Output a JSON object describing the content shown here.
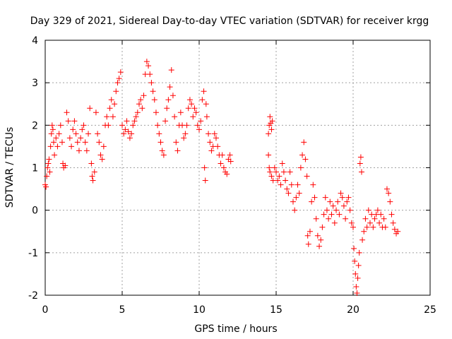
{
  "chart_data": {
    "type": "scatter",
    "title": "Day 329 of 2021, Sidereal Day-to-day VTEC variation (SDTVAR) for receiver krgg",
    "xlabel": "GPS time / hours",
    "ylabel": "SDTVAR / TECUs",
    "xlim": [
      0,
      25
    ],
    "ylim": [
      -2,
      4
    ],
    "xticks": [
      0,
      5,
      10,
      15,
      20,
      25
    ],
    "yticks": [
      -2,
      -1,
      0,
      1,
      2,
      3,
      4
    ],
    "xtick_labels": [
      "0",
      "5",
      "10",
      "15",
      "20",
      "25"
    ],
    "ytick_labels": [
      "-2",
      "-1",
      "0",
      "1",
      "2",
      "3",
      "4"
    ],
    "grid": true,
    "marker": "+",
    "marker_color": "#ff0000",
    "series": [
      {
        "name": "SDTVAR",
        "points": [
          [
            0.0,
            0.6
          ],
          [
            0.05,
            0.55
          ],
          [
            0.1,
            0.8
          ],
          [
            0.15,
            1.0
          ],
          [
            0.2,
            1.1
          ],
          [
            0.25,
            1.2
          ],
          [
            0.3,
            0.9
          ],
          [
            0.35,
            1.5
          ],
          [
            0.4,
            1.8
          ],
          [
            0.45,
            2.0
          ],
          [
            0.5,
            1.9
          ],
          [
            0.55,
            1.6
          ],
          [
            0.6,
            1.3
          ],
          [
            0.7,
            1.7
          ],
          [
            0.8,
            1.5
          ],
          [
            0.9,
            1.8
          ],
          [
            1.0,
            2.0
          ],
          [
            1.1,
            1.6
          ],
          [
            1.15,
            1.1
          ],
          [
            1.2,
            1.0
          ],
          [
            1.3,
            1.05
          ],
          [
            1.4,
            2.3
          ],
          [
            1.5,
            2.1
          ],
          [
            1.6,
            1.7
          ],
          [
            1.7,
            1.5
          ],
          [
            1.8,
            1.9
          ],
          [
            1.9,
            2.1
          ],
          [
            2.0,
            1.8
          ],
          [
            2.1,
            1.6
          ],
          [
            2.2,
            1.4
          ],
          [
            2.3,
            1.7
          ],
          [
            2.4,
            1.9
          ],
          [
            2.5,
            2.0
          ],
          [
            2.6,
            1.6
          ],
          [
            2.7,
            1.4
          ],
          [
            2.8,
            1.8
          ],
          [
            2.9,
            2.4
          ],
          [
            3.0,
            1.1
          ],
          [
            3.05,
            0.8
          ],
          [
            3.1,
            0.7
          ],
          [
            3.2,
            0.9
          ],
          [
            3.3,
            2.3
          ],
          [
            3.4,
            1.8
          ],
          [
            3.5,
            1.6
          ],
          [
            3.6,
            1.3
          ],
          [
            3.7,
            1.2
          ],
          [
            3.8,
            1.5
          ],
          [
            3.9,
            2.0
          ],
          [
            4.0,
            2.2
          ],
          [
            4.1,
            2.0
          ],
          [
            4.2,
            2.4
          ],
          [
            4.3,
            2.6
          ],
          [
            4.4,
            2.2
          ],
          [
            4.5,
            2.5
          ],
          [
            4.6,
            2.8
          ],
          [
            4.7,
            3.0
          ],
          [
            4.8,
            3.1
          ],
          [
            4.9,
            3.25
          ],
          [
            5.0,
            2.0
          ],
          [
            5.1,
            1.8
          ],
          [
            5.2,
            1.9
          ],
          [
            5.3,
            2.1
          ],
          [
            5.4,
            1.85
          ],
          [
            5.5,
            1.7
          ],
          [
            5.6,
            1.8
          ],
          [
            5.7,
            2.0
          ],
          [
            5.8,
            2.1
          ],
          [
            5.9,
            2.2
          ],
          [
            6.0,
            2.3
          ],
          [
            6.1,
            2.5
          ],
          [
            6.2,
            2.6
          ],
          [
            6.3,
            2.4
          ],
          [
            6.4,
            2.7
          ],
          [
            6.5,
            3.2
          ],
          [
            6.6,
            3.5
          ],
          [
            6.7,
            3.4
          ],
          [
            6.8,
            3.2
          ],
          [
            6.9,
            3.0
          ],
          [
            7.0,
            2.8
          ],
          [
            7.1,
            2.6
          ],
          [
            7.2,
            2.3
          ],
          [
            7.3,
            2.0
          ],
          [
            7.4,
            1.8
          ],
          [
            7.5,
            1.6
          ],
          [
            7.6,
            1.4
          ],
          [
            7.7,
            1.3
          ],
          [
            7.8,
            2.1
          ],
          [
            7.9,
            2.4
          ],
          [
            8.0,
            2.6
          ],
          [
            8.1,
            2.9
          ],
          [
            8.2,
            3.3
          ],
          [
            8.3,
            2.7
          ],
          [
            8.4,
            2.2
          ],
          [
            8.5,
            1.6
          ],
          [
            8.6,
            1.4
          ],
          [
            8.7,
            2.0
          ],
          [
            8.8,
            2.3
          ],
          [
            8.9,
            2.0
          ],
          [
            9.0,
            1.7
          ],
          [
            9.1,
            1.8
          ],
          [
            9.2,
            2.0
          ],
          [
            9.3,
            2.4
          ],
          [
            9.4,
            2.6
          ],
          [
            9.5,
            2.5
          ],
          [
            9.6,
            2.2
          ],
          [
            9.7,
            2.4
          ],
          [
            9.8,
            2.3
          ],
          [
            9.9,
            2.0
          ],
          [
            10.0,
            1.9
          ],
          [
            10.1,
            2.1
          ],
          [
            10.2,
            2.6
          ],
          [
            10.3,
            2.8
          ],
          [
            10.35,
            1.0
          ],
          [
            10.4,
            0.7
          ],
          [
            10.45,
            2.5
          ],
          [
            10.5,
            2.2
          ],
          [
            10.6,
            1.8
          ],
          [
            10.7,
            1.6
          ],
          [
            10.8,
            1.4
          ],
          [
            10.9,
            1.5
          ],
          [
            11.0,
            1.8
          ],
          [
            11.1,
            1.7
          ],
          [
            11.2,
            1.5
          ],
          [
            11.3,
            1.3
          ],
          [
            11.4,
            1.1
          ],
          [
            11.5,
            1.3
          ],
          [
            11.6,
            1.0
          ],
          [
            11.7,
            0.9
          ],
          [
            11.8,
            0.85
          ],
          [
            11.9,
            1.2
          ],
          [
            12.0,
            1.3
          ],
          [
            12.05,
            1.15
          ],
          [
            14.5,
            1.8
          ],
          [
            14.55,
            2.0
          ],
          [
            14.6,
            2.2
          ],
          [
            14.65,
            2.05
          ],
          [
            14.7,
            1.9
          ],
          [
            14.75,
            2.1
          ],
          [
            14.5,
            1.3
          ],
          [
            14.55,
            1.0
          ],
          [
            14.6,
            0.9
          ],
          [
            14.7,
            0.8
          ],
          [
            14.8,
            0.7
          ],
          [
            14.9,
            1.0
          ],
          [
            15.0,
            0.9
          ],
          [
            15.1,
            0.7
          ],
          [
            15.2,
            0.8
          ],
          [
            15.3,
            0.6
          ],
          [
            15.4,
            1.1
          ],
          [
            15.5,
            0.9
          ],
          [
            15.6,
            0.7
          ],
          [
            15.7,
            0.5
          ],
          [
            15.8,
            0.4
          ],
          [
            15.9,
            0.9
          ],
          [
            16.0,
            0.6
          ],
          [
            16.1,
            0.2
          ],
          [
            16.2,
            0.0
          ],
          [
            16.3,
            0.3
          ],
          [
            16.4,
            0.6
          ],
          [
            16.5,
            0.4
          ],
          [
            16.6,
            1.0
          ],
          [
            16.7,
            1.3
          ],
          [
            16.8,
            1.6
          ],
          [
            16.9,
            1.2
          ],
          [
            17.0,
            0.8
          ],
          [
            17.05,
            -0.6
          ],
          [
            17.1,
            -0.8
          ],
          [
            17.2,
            -0.5
          ],
          [
            17.3,
            0.2
          ],
          [
            17.4,
            0.6
          ],
          [
            17.5,
            0.3
          ],
          [
            17.6,
            -0.2
          ],
          [
            17.7,
            -0.6
          ],
          [
            17.8,
            -0.85
          ],
          [
            17.9,
            -0.7
          ],
          [
            18.0,
            -0.4
          ],
          [
            18.1,
            -0.1
          ],
          [
            18.2,
            0.3
          ],
          [
            18.3,
            0.0
          ],
          [
            18.4,
            -0.2
          ],
          [
            18.5,
            0.2
          ],
          [
            18.6,
            -0.1
          ],
          [
            18.7,
            0.1
          ],
          [
            18.8,
            -0.3
          ],
          [
            18.9,
            0.0
          ],
          [
            19.0,
            0.2
          ],
          [
            19.1,
            -0.1
          ],
          [
            19.2,
            0.4
          ],
          [
            19.3,
            0.3
          ],
          [
            19.4,
            0.1
          ],
          [
            19.5,
            -0.2
          ],
          [
            19.6,
            0.2
          ],
          [
            19.7,
            0.3
          ],
          [
            19.8,
            0.0
          ],
          [
            19.9,
            -0.3
          ],
          [
            20.0,
            -0.4
          ],
          [
            20.05,
            -0.9
          ],
          [
            20.1,
            -1.2
          ],
          [
            20.15,
            -1.5
          ],
          [
            20.2,
            -1.8
          ],
          [
            20.25,
            -1.95
          ],
          [
            20.3,
            -1.6
          ],
          [
            20.35,
            -1.3
          ],
          [
            20.4,
            -1.0
          ],
          [
            20.45,
            1.1
          ],
          [
            20.5,
            1.25
          ],
          [
            20.55,
            0.9
          ],
          [
            20.6,
            -0.7
          ],
          [
            20.7,
            -0.5
          ],
          [
            20.8,
            -0.2
          ],
          [
            20.9,
            -0.4
          ],
          [
            21.0,
            0.0
          ],
          [
            21.1,
            -0.3
          ],
          [
            21.2,
            -0.1
          ],
          [
            21.3,
            -0.4
          ],
          [
            21.4,
            -0.2
          ],
          [
            21.5,
            -0.1
          ],
          [
            21.6,
            0.0
          ],
          [
            21.7,
            -0.3
          ],
          [
            21.8,
            -0.1
          ],
          [
            21.9,
            -0.4
          ],
          [
            22.0,
            -0.2
          ],
          [
            22.1,
            -0.4
          ],
          [
            22.2,
            0.5
          ],
          [
            22.3,
            0.4
          ],
          [
            22.4,
            0.2
          ],
          [
            22.5,
            -0.1
          ],
          [
            22.6,
            -0.3
          ],
          [
            22.7,
            -0.45
          ],
          [
            22.8,
            -0.55
          ],
          [
            22.9,
            -0.5
          ]
        ]
      }
    ]
  }
}
